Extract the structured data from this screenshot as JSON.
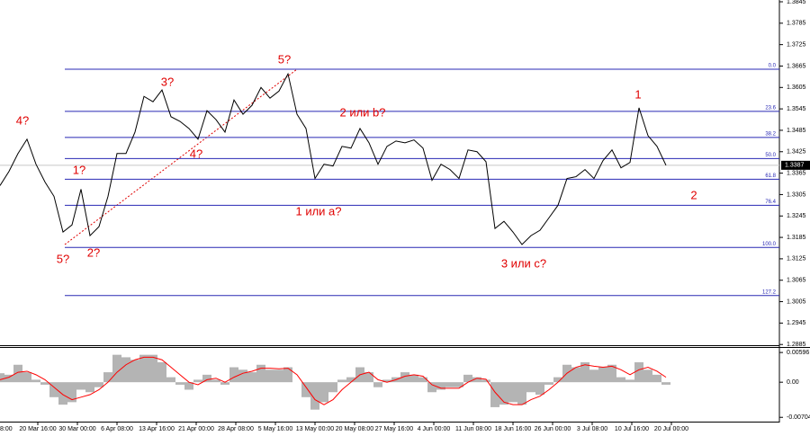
{
  "chart_data": [
    {
      "type": "line",
      "x": [
        0,
        1,
        2,
        3,
        4,
        5,
        6,
        7,
        8,
        9,
        10,
        11,
        12,
        13,
        14,
        15,
        16,
        17,
        18,
        19,
        20,
        21,
        22,
        23,
        24,
        25,
        26,
        27,
        28,
        29,
        30,
        31,
        32,
        33,
        34,
        35,
        36,
        37,
        38,
        39,
        40,
        41,
        42,
        43,
        44,
        45,
        46,
        47,
        48,
        49,
        50,
        51,
        52,
        53,
        54,
        55,
        56,
        57,
        58,
        59,
        60,
        61,
        62,
        63,
        64,
        65,
        66,
        67,
        68,
        69,
        70,
        71,
        72,
        73,
        74
      ],
      "series": [
        {
          "color": "#000000",
          "values": [
            1.333,
            1.337,
            1.342,
            1.346,
            1.339,
            1.334,
            1.33,
            1.32,
            1.322,
            1.332,
            1.319,
            1.3215,
            1.33,
            1.342,
            1.342,
            1.348,
            1.358,
            1.3565,
            1.3598,
            1.3523,
            1.351,
            1.349,
            1.346,
            1.354,
            1.3515,
            1.348,
            1.357,
            1.353,
            1.3555,
            1.3605,
            1.3575,
            1.3595,
            1.3643,
            1.353,
            1.349,
            1.335,
            1.339,
            1.3385,
            1.344,
            1.3435,
            1.349,
            1.345,
            1.339,
            1.344,
            1.3455,
            1.345,
            1.3458,
            1.3435,
            1.3345,
            1.339,
            1.3375,
            1.335,
            1.343,
            1.3425,
            1.3397,
            1.321,
            1.323,
            1.32,
            1.3165,
            1.319,
            1.3205,
            1.324,
            1.3275,
            1.335,
            1.3355,
            1.3375,
            1.335,
            1.34,
            1.343,
            1.338,
            1.3395,
            1.3548,
            1.347,
            1.344,
            1.3387
          ]
        }
      ],
      "xlim": [
        0,
        86.6
      ],
      "ylim": [
        1.2883,
        1.385
      ],
      "yticks": [
        1.3845,
        1.3785,
        1.3725,
        1.3665,
        1.3605,
        1.3545,
        1.3485,
        1.3425,
        1.3365,
        1.3305,
        1.3245,
        1.3185,
        1.3125,
        1.3065,
        1.3005,
        1.2945,
        1.2885
      ],
      "levels": [
        {
          "value": 1.3656,
          "label": "0.0"
        },
        {
          "value": 1.3538,
          "label": "23.6"
        },
        {
          "value": 1.3465,
          "label": "38.2"
        },
        {
          "value": 1.3406,
          "label": "50.0"
        },
        {
          "value": 1.3348,
          "label": "61.8"
        },
        {
          "value": 1.3275,
          "label": "76.4"
        },
        {
          "value": 1.3157,
          "label": "100.0"
        },
        {
          "value": 1.3022,
          "label": "127.2"
        }
      ],
      "level_color": "#2828b4",
      "annotations": [
        "4?",
        "1?",
        "5?",
        "2?",
        "3?",
        "4?",
        "5?",
        "1 или a?",
        "2 или b?",
        "3 или c?",
        "1",
        "2"
      ],
      "annotation_color": "#e00000"
    },
    {
      "type": "bar",
      "x": [
        0,
        1,
        2,
        3,
        4,
        5,
        6,
        7,
        8,
        9,
        10,
        11,
        12,
        13,
        14,
        15,
        16,
        17,
        18,
        19,
        20,
        21,
        22,
        23,
        24,
        25,
        26,
        27,
        28,
        29,
        30,
        31,
        32,
        33,
        34,
        35,
        36,
        37,
        38,
        39,
        40,
        41,
        42,
        43,
        44,
        45,
        46,
        47,
        48,
        49,
        50,
        51,
        52,
        53,
        54,
        55,
        56,
        57,
        58,
        59,
        60,
        61,
        62,
        63,
        64,
        65,
        66,
        67,
        68,
        69,
        70,
        71,
        72,
        73,
        74
      ],
      "series": [
        {
          "type": "bar",
          "color": "#b4b4b4",
          "values": [
            0.0018,
            0.0015,
            0.0035,
            0.002,
            0.0005,
            -0.0005,
            -0.003,
            -0.0045,
            -0.004,
            -0.0015,
            -0.002,
            -0.001,
            0.002,
            0.0055,
            0.005,
            0.0045,
            0.0055,
            0.0055,
            0.004,
            0.001,
            -0.0005,
            -0.0015,
            0.0005,
            0.0015,
            0.0005,
            -0.0005,
            0.003,
            0.0025,
            0.002,
            0.0035,
            0.0025,
            0.0025,
            0.003,
            0.0,
            -0.003,
            -0.0055,
            -0.004,
            -0.002,
            0.0005,
            0.001,
            0.003,
            0.002,
            -0.001,
            0.0005,
            0.001,
            0.002,
            0.0015,
            0.001,
            -0.002,
            -0.0015,
            -0.001,
            -0.001,
            0.0015,
            0.001,
            0.0005,
            -0.005,
            -0.0045,
            -0.004,
            -0.0045,
            -0.002,
            -0.0025,
            -0.0005,
            0.001,
            0.0035,
            0.003,
            0.004,
            0.0025,
            0.003,
            0.0035,
            0.001,
            0.0005,
            0.004,
            0.0025,
            0.0015,
            -0.0005
          ]
        },
        {
          "type": "line",
          "color": "#ff0000",
          "values": [
            0.0005,
            0.001,
            0.002,
            0.0022,
            0.0015,
            0.0005,
            -0.001,
            -0.0025,
            -0.0035,
            -0.003,
            -0.0025,
            -0.0015,
            0.0,
            0.002,
            0.0035,
            0.0045,
            0.005,
            0.005,
            0.0045,
            0.003,
            0.0015,
            0.0,
            -0.0005,
            0.0005,
            0.0008,
            0.0,
            0.001,
            0.0018,
            0.0022,
            0.0028,
            0.0028,
            0.0027,
            0.0028,
            0.0015,
            -0.001,
            -0.0035,
            -0.0045,
            -0.0035,
            -0.0015,
            0.0,
            0.0015,
            0.002,
            0.0005,
            0.0,
            0.0005,
            0.0012,
            0.0015,
            0.0012,
            -0.0005,
            -0.0012,
            -0.0012,
            -0.0012,
            0.0,
            0.0008,
            0.0006,
            -0.002,
            -0.004,
            -0.0045,
            -0.0045,
            -0.0035,
            -0.0028,
            -0.0015,
            0.0,
            0.0018,
            0.003,
            0.0035,
            0.0032,
            0.003,
            0.0032,
            0.0025,
            0.0015,
            0.0025,
            0.003,
            0.0022,
            0.001
          ]
        }
      ],
      "xlim": [
        0,
        86.6
      ],
      "ylim": [
        -0.0079,
        0.0067
      ],
      "yticks": [
        0.00596,
        {
          "value": 0,
          "label": "0.00"
        },
        -0.00704
      ],
      "xticks": [
        {
          "value": -0.2,
          "label": "8:00"
        },
        {
          "value": 4.2,
          "label": "20 Mar 16:00"
        },
        {
          "value": 8.6,
          "label": "30 Mar 00:00"
        },
        {
          "value": 13.0,
          "label": "6 Apr 08:00"
        },
        {
          "value": 17.4,
          "label": "13 Apr 16:00"
        },
        {
          "value": 21.8,
          "label": "21 Apr 00:00"
        },
        {
          "value": 26.2,
          "label": "28 Apr 08:00"
        },
        {
          "value": 30.6,
          "label": "5 May 16:00"
        },
        {
          "value": 35.0,
          "label": "13 May 00:00"
        },
        {
          "value": 39.4,
          "label": "20 May 08:00"
        },
        {
          "value": 43.8,
          "label": "27 May 16:00"
        },
        {
          "value": 48.2,
          "label": "4 Jun 00:00"
        },
        {
          "value": 52.6,
          "label": "11 Jun 08:00"
        },
        {
          "value": 57.0,
          "label": "18 Jun 16:00"
        },
        {
          "value": 61.4,
          "label": "26 Jun 00:00"
        },
        {
          "value": 65.8,
          "label": "3 Jul 08:00"
        },
        {
          "value": 70.2,
          "label": "10 Jul 16:00"
        },
        {
          "value": 74.6,
          "label": "20 Jul 00:00"
        }
      ]
    }
  ]
}
